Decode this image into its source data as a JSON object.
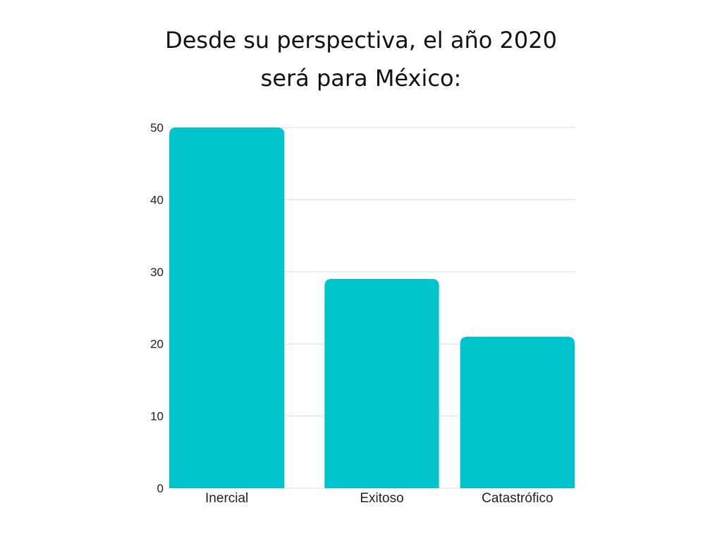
{
  "chart_data": {
    "type": "bar",
    "title_lines": [
      "Desde su perspectiva, el año 2020",
      "será para México:"
    ],
    "categories": [
      "Inercial",
      "Exitoso",
      "Catastrófico"
    ],
    "values": [
      50,
      29,
      21
    ],
    "ylim": [
      0,
      50
    ],
    "yticks": [
      0,
      10,
      20,
      30,
      40,
      50
    ],
    "xlabel": "",
    "ylabel": "",
    "grid": true,
    "legend": "none",
    "bar_color": "#00C4CC",
    "grid_color": "#DDDDDD"
  }
}
